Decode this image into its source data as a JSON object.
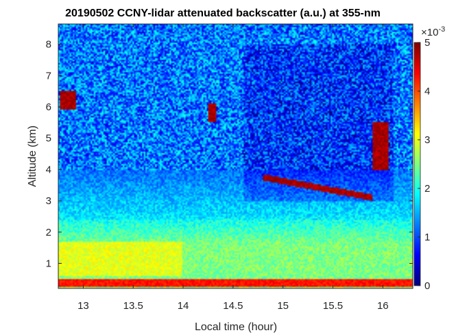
{
  "chart_data": {
    "type": "heatmap",
    "title": "20190502 CCNY-lidar attenuated backscatter (a.u.) at 355-nm",
    "xlabel": "Local time (hour)",
    "ylabel": "Altitude (km)",
    "xlim": [
      12.75,
      16.3
    ],
    "ylim": [
      0.2,
      8.65
    ],
    "xticks": [
      "13",
      "13.5",
      "14",
      "14.5",
      "15",
      "15.5",
      "16"
    ],
    "yticks": [
      "1",
      "2",
      "3",
      "4",
      "5",
      "6",
      "7",
      "8"
    ],
    "colorbar": {
      "colormap": "jet",
      "range": [
        0,
        5
      ],
      "ticks": [
        "0",
        "1",
        "2",
        "3",
        "4",
        "5"
      ],
      "exponent_label": "×10",
      "exponent_value": "-3"
    },
    "features": [
      {
        "kind": "surface_layer",
        "time_range": [
          12.75,
          16.3
        ],
        "altitude_km": [
          0.25,
          0.5
        ],
        "value": 4.5
      },
      {
        "kind": "boundary_layer",
        "time_range": [
          12.75,
          14.0
        ],
        "altitude_km": [
          0.6,
          1.7
        ],
        "value": 3.0
      },
      {
        "kind": "cloud_layer",
        "time_range": [
          14.8,
          15.9
        ],
        "altitude_km": [
          3.0,
          3.8
        ],
        "value": 5.0
      },
      {
        "kind": "cloud_patch",
        "time_range": [
          14.25,
          14.33
        ],
        "altitude_km": [
          5.5,
          6.1
        ],
        "value": 5.0
      },
      {
        "kind": "cloud_patch",
        "time_range": [
          12.77,
          12.92
        ],
        "altitude_km": [
          5.9,
          6.5
        ],
        "value": 5.0
      },
      {
        "kind": "cloud_patch",
        "time_range": [
          15.9,
          16.05
        ],
        "altitude_km": [
          4.0,
          5.5
        ],
        "value": 5.0
      }
    ]
  }
}
